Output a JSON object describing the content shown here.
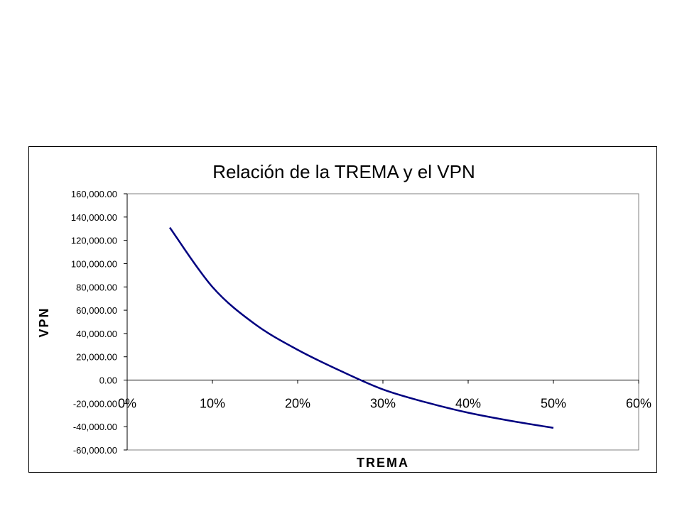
{
  "chart_data": {
    "type": "line",
    "title": "Relación de la TREMA y el VPN",
    "xlabel": "TREMA",
    "ylabel": "VPN",
    "xlim": [
      0,
      0.6
    ],
    "ylim": [
      -60000,
      160000
    ],
    "x_ticks": [
      0,
      0.1,
      0.2,
      0.3,
      0.4,
      0.5,
      0.6
    ],
    "x_tick_labels": [
      "0%",
      "10%",
      "20%",
      "30%",
      "40%",
      "50%",
      "60%"
    ],
    "y_ticks": [
      160000,
      140000,
      120000,
      100000,
      80000,
      60000,
      40000,
      20000,
      0,
      -20000,
      -40000,
      -60000
    ],
    "y_tick_labels": [
      "160,000.00",
      "140,000.00",
      "120,000.00",
      "100,000.00",
      "80,000.00",
      "60,000.00",
      "40,000.00",
      "20,000.00",
      "0.00",
      "-20,000.00",
      "-40,000.00",
      "-60,000.00"
    ],
    "grid": false,
    "legend": "none",
    "series": [
      {
        "color": "#000080",
        "x": [
          0.05,
          0.1,
          0.15,
          0.2,
          0.25,
          0.3,
          0.35,
          0.4,
          0.45,
          0.5
        ],
        "y": [
          131000,
          80000,
          48000,
          26000,
          8000,
          -8000,
          -19000,
          -28000,
          -35000,
          -41000
        ]
      }
    ]
  }
}
